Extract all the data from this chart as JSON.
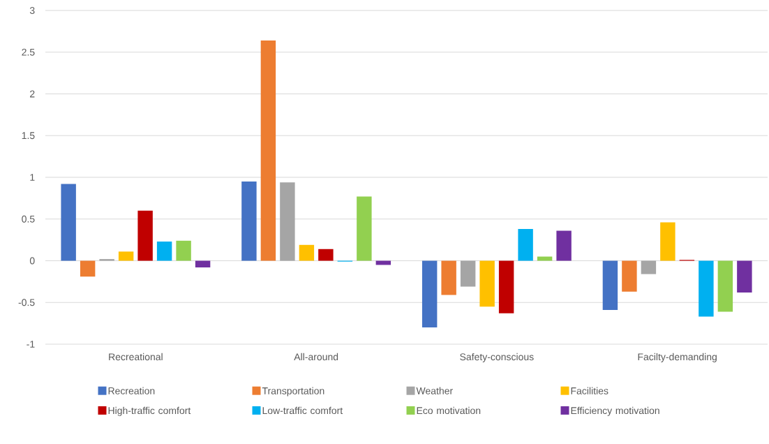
{
  "chart_data": {
    "type": "bar",
    "categories": [
      "Recreational",
      "All-around",
      "Safety-conscious",
      "Facilty-demanding"
    ],
    "series": [
      {
        "name": "Recreation",
        "color": "#4472c4",
        "values": [
          0.92,
          0.95,
          -0.8,
          -0.59
        ]
      },
      {
        "name": "Transportation",
        "color": "#ed7d31",
        "values": [
          -0.19,
          2.64,
          -0.41,
          -0.37
        ]
      },
      {
        "name": "Weather",
        "color": "#a5a5a5",
        "values": [
          0.02,
          0.94,
          -0.31,
          -0.16
        ]
      },
      {
        "name": "Facilities",
        "color": "#ffc000",
        "values": [
          0.11,
          0.19,
          -0.55,
          0.46
        ]
      },
      {
        "name": "High-traffic comfort",
        "color": "#c00000",
        "values": [
          0.6,
          0.14,
          -0.63,
          0.01
        ]
      },
      {
        "name": "Low-traffic comfort",
        "color": "#00b0f0",
        "values": [
          0.23,
          -0.01,
          0.38,
          -0.67
        ]
      },
      {
        "name": "Eco motivation",
        "color": "#92d050",
        "values": [
          0.24,
          0.77,
          0.05,
          -0.61
        ]
      },
      {
        "name": "Efficiency motivation",
        "color": "#7030a0",
        "values": [
          -0.08,
          -0.05,
          0.36,
          -0.38
        ]
      }
    ],
    "ylim": [
      -1,
      3
    ],
    "yticks": [
      -1,
      -0.5,
      0,
      0.5,
      1,
      1.5,
      2,
      2.5,
      3
    ],
    "grid": "y",
    "legend": "bottom"
  }
}
